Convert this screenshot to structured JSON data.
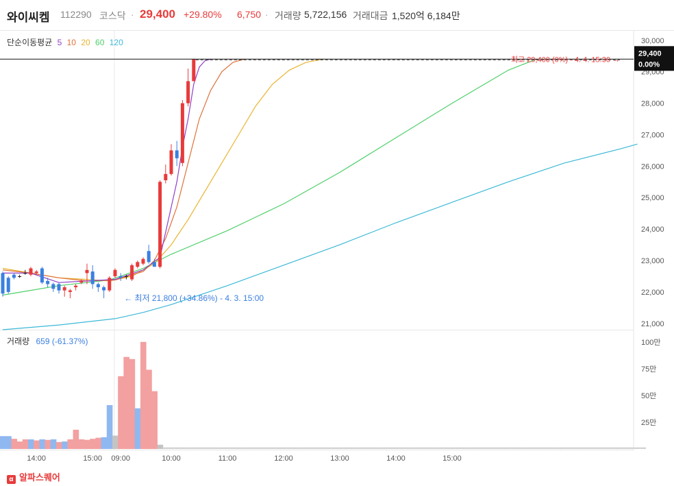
{
  "header": {
    "name": "와이씨켐",
    "code": "112290",
    "market": "코스닥",
    "separator": "·",
    "price": "29,400",
    "change_pct": "+29.80%",
    "change": "6,750",
    "volume_label": "거래량",
    "volume": "5,722,156",
    "amount_label": "거래대금",
    "amount": "1,520억 6,184만"
  },
  "legend": {
    "title": "단순이동평균",
    "periods": [
      "5",
      "10",
      "20",
      "60",
      "120"
    ]
  },
  "colors": {
    "up": "#e83a3a",
    "down": "#3b7fe0",
    "ma5": "#8f3fc6",
    "ma10": "#e0703a",
    "ma20": "#e8b430",
    "ma60": "#4fcf6a",
    "ma120": "#3bb8d6",
    "vol_up": "#f3a0a0",
    "vol_down": "#90b8f0",
    "vol_flat": "#c4c4c4"
  },
  "price_tag": {
    "price": "29,400",
    "pct": "0.00%"
  },
  "annotations": {
    "high": "최고 29,400 (0%) - 4. 4. 15:30 →",
    "low": "← 최저 21,800 (+34.86%) - 4. 3. 15:00"
  },
  "volume_legend": {
    "label": "거래량",
    "value": "659 (-61.37%)"
  },
  "footer": {
    "logo": "α",
    "brand": "알파스퀘어"
  },
  "chart_data": {
    "type": "candlestick",
    "y_axis": {
      "ticks": [
        21000,
        22000,
        23000,
        24000,
        25000,
        26000,
        27000,
        28000,
        29000,
        30000
      ],
      "tick_labels": [
        "21,000",
        "22,000",
        "23,000",
        "24,000",
        "25,000",
        "26,000",
        "27,000",
        "28,000",
        "29,000",
        "30,000"
      ],
      "range": [
        20800,
        30300
      ]
    },
    "x_axis": {
      "tick_labels": [
        "14:00",
        "15:00",
        "09:00",
        "10:00",
        "11:00",
        "12:00",
        "13:00",
        "14:00",
        "15:00"
      ],
      "tick_index": [
        6,
        16,
        21,
        30,
        40,
        50,
        60,
        70,
        80
      ]
    },
    "session_divider_index": 19,
    "candles": [
      {
        "i": 0,
        "o": 22600,
        "c": 21950,
        "h": 22650,
        "l": 21850
      },
      {
        "i": 1,
        "o": 22450,
        "c": 22000,
        "h": 22500,
        "l": 21950
      },
      {
        "i": 2,
        "o": 22550,
        "c": 22450,
        "h": 22600,
        "l": 22400
      },
      {
        "i": 3,
        "o": 22500,
        "c": 22500,
        "h": 22550,
        "l": 22450
      },
      {
        "i": 4,
        "o": 22600,
        "c": 22600,
        "h": 22700,
        "l": 22550
      },
      {
        "i": 5,
        "o": 22550,
        "c": 22750,
        "h": 22800,
        "l": 22500
      },
      {
        "i": 6,
        "o": 22600,
        "c": 22650,
        "h": 22700,
        "l": 22550
      },
      {
        "i": 7,
        "o": 22750,
        "c": 22300,
        "h": 22800,
        "l": 22250
      },
      {
        "i": 8,
        "o": 22350,
        "c": 22250,
        "h": 22450,
        "l": 22150
      },
      {
        "i": 9,
        "o": 22250,
        "c": 22100,
        "h": 22300,
        "l": 22000
      },
      {
        "i": 10,
        "o": 22250,
        "c": 22050,
        "h": 22300,
        "l": 21950
      },
      {
        "i": 11,
        "o": 22050,
        "c": 22150,
        "h": 22200,
        "l": 21850
      },
      {
        "i": 12,
        "o": 22000,
        "c": 22050,
        "h": 22100,
        "l": 21800
      },
      {
        "i": 13,
        "o": 22150,
        "c": 22200,
        "h": 22250,
        "l": 22050
      },
      {
        "i": 14,
        "o": 22300,
        "c": 22350,
        "h": 22400,
        "l": 22250
      },
      {
        "i": 15,
        "o": 22600,
        "c": 22700,
        "h": 22900,
        "l": 22250
      },
      {
        "i": 16,
        "o": 22650,
        "c": 22250,
        "h": 22850,
        "l": 22100
      },
      {
        "i": 17,
        "o": 22250,
        "c": 22150,
        "h": 22300,
        "l": 22000
      },
      {
        "i": 18,
        "o": 22150,
        "c": 22050,
        "h": 22200,
        "l": 21800
      },
      {
        "i": 19,
        "o": 22050,
        "c": 22450,
        "h": 22500,
        "l": 22000
      },
      {
        "i": 20,
        "o": 22500,
        "c": 22700,
        "h": 22750,
        "l": 22450
      },
      {
        "i": 21,
        "o": 22500,
        "c": 22450,
        "h": 22600,
        "l": 22350
      },
      {
        "i": 22,
        "o": 22500,
        "c": 22500,
        "h": 22550,
        "l": 22400
      },
      {
        "i": 23,
        "o": 22400,
        "c": 22850,
        "h": 22900,
        "l": 22350
      },
      {
        "i": 24,
        "o": 22800,
        "c": 22950,
        "h": 23000,
        "l": 22750
      },
      {
        "i": 25,
        "o": 22900,
        "c": 23050,
        "h": 23100,
        "l": 22850
      },
      {
        "i": 26,
        "o": 23300,
        "c": 22950,
        "h": 23500,
        "l": 22900
      },
      {
        "i": 27,
        "o": 22950,
        "c": 22800,
        "h": 23050,
        "l": 22800
      },
      {
        "i": 28,
        "o": 22800,
        "c": 25500,
        "h": 25550,
        "l": 22750
      },
      {
        "i": 29,
        "o": 25550,
        "c": 25750,
        "h": 26050,
        "l": 25450
      },
      {
        "i": 30,
        "o": 25750,
        "c": 26500,
        "h": 26700,
        "l": 25700
      },
      {
        "i": 31,
        "o": 26500,
        "c": 26250,
        "h": 26800,
        "l": 26000
      },
      {
        "i": 32,
        "o": 26100,
        "c": 28000,
        "h": 28100,
        "l": 26000
      },
      {
        "i": 33,
        "o": 28000,
        "c": 28700,
        "h": 29100,
        "l": 27900
      },
      {
        "i": 34,
        "o": 28700,
        "c": 29400,
        "h": 29400,
        "l": 28700
      }
    ],
    "moving_averages": {
      "ma5": [
        [
          0,
          22600
        ],
        [
          5,
          22600
        ],
        [
          10,
          22300
        ],
        [
          15,
          22350
        ],
        [
          20,
          22400
        ],
        [
          25,
          22700
        ],
        [
          28,
          23100
        ],
        [
          29,
          23900
        ],
        [
          30,
          24700
        ],
        [
          31,
          25500
        ],
        [
          32,
          26600
        ],
        [
          33,
          27500
        ],
        [
          34,
          28600
        ],
        [
          35,
          29150
        ],
        [
          36,
          29350
        ],
        [
          37,
          29400
        ]
      ],
      "ma10": [
        [
          0,
          22700
        ],
        [
          5,
          22600
        ],
        [
          10,
          22450
        ],
        [
          15,
          22350
        ],
        [
          20,
          22380
        ],
        [
          25,
          22650
        ],
        [
          27,
          23000
        ],
        [
          29,
          23700
        ],
        [
          31,
          24700
        ],
        [
          33,
          26100
        ],
        [
          35,
          27500
        ],
        [
          37,
          28400
        ],
        [
          39,
          29000
        ],
        [
          41,
          29300
        ],
        [
          43,
          29400
        ]
      ],
      "ma20": [
        [
          0,
          22750
        ],
        [
          5,
          22600
        ],
        [
          10,
          22450
        ],
        [
          15,
          22400
        ],
        [
          19,
          22350
        ],
        [
          23,
          22500
        ],
        [
          27,
          22900
        ],
        [
          30,
          23500
        ],
        [
          33,
          24300
        ],
        [
          36,
          25200
        ],
        [
          39,
          26100
        ],
        [
          42,
          27000
        ],
        [
          45,
          27900
        ],
        [
          48,
          28600
        ],
        [
          51,
          29050
        ],
        [
          54,
          29300
        ],
        [
          57,
          29400
        ]
      ],
      "ma60": [
        [
          0,
          21900
        ],
        [
          5,
          22050
        ],
        [
          10,
          22200
        ],
        [
          15,
          22300
        ],
        [
          19,
          22380
        ],
        [
          25,
          22750
        ],
        [
          30,
          23200
        ],
        [
          40,
          23950
        ],
        [
          50,
          24800
        ],
        [
          60,
          25800
        ],
        [
          70,
          26900
        ],
        [
          80,
          28000
        ],
        [
          90,
          29050
        ],
        [
          95,
          29400
        ]
      ],
      "ma120": [
        [
          0,
          20800
        ],
        [
          10,
          20950
        ],
        [
          20,
          21150
        ],
        [
          25,
          21350
        ],
        [
          30,
          21600
        ],
        [
          40,
          22200
        ],
        [
          50,
          22850
        ],
        [
          60,
          23500
        ],
        [
          70,
          24200
        ],
        [
          80,
          24850
        ],
        [
          90,
          25500
        ],
        [
          100,
          26100
        ],
        [
          110,
          26550
        ],
        [
          113,
          26700
        ]
      ]
    },
    "volume": {
      "y_axis": {
        "ticks": [
          250000,
          500000,
          750000,
          1000000
        ],
        "tick_labels": [
          "25만",
          "50만",
          "75만",
          "100만"
        ],
        "max": 1050000
      },
      "bars": [
        {
          "i": 0,
          "v": 120000,
          "d": "down"
        },
        {
          "i": 1,
          "v": 120000,
          "d": "down"
        },
        {
          "i": 2,
          "v": 95000,
          "d": "up"
        },
        {
          "i": 3,
          "v": 70000,
          "d": "up"
        },
        {
          "i": 4,
          "v": 90000,
          "d": "up"
        },
        {
          "i": 5,
          "v": 90000,
          "d": "down"
        },
        {
          "i": 6,
          "v": 80000,
          "d": "up"
        },
        {
          "i": 7,
          "v": 90000,
          "d": "down"
        },
        {
          "i": 8,
          "v": 85000,
          "d": "up"
        },
        {
          "i": 9,
          "v": 90000,
          "d": "down"
        },
        {
          "i": 10,
          "v": 65000,
          "d": "up"
        },
        {
          "i": 11,
          "v": 70000,
          "d": "down"
        },
        {
          "i": 12,
          "v": 90000,
          "d": "up"
        },
        {
          "i": 13,
          "v": 180000,
          "d": "up"
        },
        {
          "i": 14,
          "v": 90000,
          "d": "up"
        },
        {
          "i": 15,
          "v": 85000,
          "d": "up"
        },
        {
          "i": 16,
          "v": 95000,
          "d": "up"
        },
        {
          "i": 17,
          "v": 105000,
          "d": "up"
        },
        {
          "i": 18,
          "v": 110000,
          "d": "down"
        },
        {
          "i": 19,
          "v": 410000,
          "d": "down"
        },
        {
          "i": 20,
          "v": 125000,
          "d": "flat"
        },
        {
          "i": 21,
          "v": 680000,
          "d": "up"
        },
        {
          "i": 22,
          "v": 860000,
          "d": "up"
        },
        {
          "i": 23,
          "v": 840000,
          "d": "up"
        },
        {
          "i": 24,
          "v": 380000,
          "d": "down"
        },
        {
          "i": 25,
          "v": 1000000,
          "d": "up"
        },
        {
          "i": 26,
          "v": 740000,
          "d": "up"
        },
        {
          "i": 27,
          "v": 540000,
          "d": "up"
        },
        {
          "i": 28,
          "v": 40000,
          "d": "flat"
        }
      ],
      "tail": {
        "from": 29,
        "to": 114,
        "v": 15000
      }
    }
  }
}
